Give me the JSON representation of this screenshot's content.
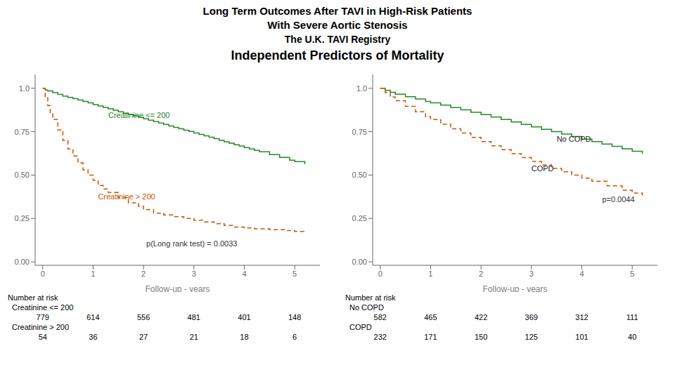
{
  "title": [
    "Long Term Outcomes After TAVI in High-Risk Patients",
    "With Severe Aortic Stenosis",
    "The U.K. TAVI Registry"
  ],
  "subtitle": "Independent Predictors of Mortality",
  "chart_data": [
    {
      "type": "step",
      "xlabel": "Follow-up - years",
      "xlim": [
        -0.15,
        5.5
      ],
      "xticks": [
        0,
        1,
        2,
        3,
        4,
        5
      ],
      "ylim": [
        -0.02,
        1.08
      ],
      "yticks": [
        {
          "value": 0,
          "label": "0.00"
        },
        0.25,
        {
          "value": 0.5,
          "label": "0.50"
        },
        0.75,
        {
          "value": 1.0,
          "label": "1.0"
        }
      ],
      "grid": false,
      "series": [
        {
          "color": "#228B22",
          "line_style": "solid",
          "x": [
            0,
            0.05,
            0.1,
            0.2,
            0.3,
            0.4,
            0.5,
            0.6,
            0.7,
            0.8,
            0.9,
            1.0,
            1.1,
            1.2,
            1.3,
            1.4,
            1.5,
            1.6,
            1.7,
            1.8,
            1.9,
            2.0,
            2.1,
            2.2,
            2.3,
            2.4,
            2.5,
            2.6,
            2.7,
            2.8,
            2.9,
            3.0,
            3.1,
            3.2,
            3.3,
            3.4,
            3.5,
            3.6,
            3.7,
            3.8,
            3.9,
            4.0,
            4.1,
            4.2,
            4.3,
            4.5,
            4.7,
            4.9,
            5.0,
            5.2
          ],
          "values": [
            1.0,
            0.99,
            0.985,
            0.975,
            0.965,
            0.955,
            0.948,
            0.94,
            0.932,
            0.924,
            0.916,
            0.906,
            0.898,
            0.89,
            0.882,
            0.874,
            0.865,
            0.857,
            0.849,
            0.841,
            0.833,
            0.824,
            0.816,
            0.808,
            0.8,
            0.792,
            0.783,
            0.775,
            0.767,
            0.759,
            0.751,
            0.742,
            0.734,
            0.726,
            0.718,
            0.71,
            0.7,
            0.692,
            0.684,
            0.675,
            0.667,
            0.658,
            0.65,
            0.642,
            0.634,
            0.618,
            0.602,
            0.586,
            0.578,
            0.562
          ]
        },
        {
          "color": "#CC5500",
          "line_style": "dashed",
          "x": [
            0,
            0.05,
            0.1,
            0.15,
            0.2,
            0.3,
            0.4,
            0.5,
            0.6,
            0.7,
            0.8,
            0.9,
            1.0,
            1.1,
            1.2,
            1.3,
            1.5,
            1.7,
            1.9,
            2.0,
            2.2,
            2.4,
            2.6,
            2.8,
            3.0,
            3.2,
            3.4,
            3.6,
            3.8,
            4.0,
            4.2,
            4.5,
            4.8,
            5.0,
            5.2
          ],
          "values": [
            1.0,
            0.95,
            0.9,
            0.86,
            0.82,
            0.76,
            0.7,
            0.65,
            0.61,
            0.57,
            0.53,
            0.5,
            0.47,
            0.44,
            0.42,
            0.4,
            0.37,
            0.34,
            0.32,
            0.3,
            0.28,
            0.27,
            0.26,
            0.25,
            0.24,
            0.23,
            0.22,
            0.21,
            0.2,
            0.195,
            0.19,
            0.185,
            0.18,
            0.175,
            0.17
          ]
        }
      ],
      "annotations": [
        {
          "text": "Creatinine <= 200",
          "x": 1.3,
          "y": 0.83,
          "color": "#228B22"
        },
        {
          "text": "Creatinine > 200",
          "x": 1.1,
          "y": 0.36,
          "color": "#CC5500"
        },
        {
          "text": "p(Long rank test) = 0.0033"
        }
      ],
      "risk_table": {
        "title": "Number at risk",
        "x": [
          0,
          1,
          2,
          3,
          4,
          5
        ],
        "rows": [
          {
            "name": "Creatinine <= 200",
            "values": [
              779,
              614,
              556,
              481,
              401,
              148
            ]
          },
          {
            "name": "Creatinine > 200",
            "values": [
              54,
              36,
              27,
              21,
              18,
              6
            ]
          }
        ]
      }
    },
    {
      "type": "step",
      "xlabel": "Follow-up - years",
      "xlim": [
        -0.15,
        5.5
      ],
      "xticks": [
        0,
        1,
        2,
        3,
        4,
        5
      ],
      "ylim": [
        -0.02,
        1.08
      ],
      "yticks": [
        {
          "value": 0,
          "label": "0.00"
        },
        0.25,
        {
          "value": 0.5,
          "label": "0.50"
        },
        0.75,
        {
          "value": 1.0,
          "label": "1.0"
        }
      ],
      "grid": false,
      "series": [
        {
          "color": "#228B22",
          "line_style": "solid",
          "x": [
            0,
            0.1,
            0.2,
            0.3,
            0.5,
            0.7,
            0.9,
            1.0,
            1.2,
            1.4,
            1.6,
            1.8,
            2.0,
            2.2,
            2.4,
            2.6,
            2.8,
            3.0,
            3.2,
            3.4,
            3.6,
            3.8,
            4.0,
            4.2,
            4.4,
            4.6,
            4.8,
            5.0,
            5.2
          ],
          "values": [
            1.0,
            0.988,
            0.977,
            0.966,
            0.952,
            0.938,
            0.924,
            0.916,
            0.903,
            0.889,
            0.876,
            0.862,
            0.848,
            0.834,
            0.82,
            0.806,
            0.792,
            0.778,
            0.764,
            0.75,
            0.736,
            0.722,
            0.707,
            0.693,
            0.679,
            0.665,
            0.651,
            0.637,
            0.623
          ]
        },
        {
          "color": "#CC5500",
          "line_style": "dashed",
          "x": [
            0,
            0.1,
            0.2,
            0.3,
            0.5,
            0.7,
            0.9,
            1.0,
            1.2,
            1.4,
            1.6,
            1.8,
            2.0,
            2.2,
            2.4,
            2.6,
            2.8,
            3.0,
            3.2,
            3.4,
            3.6,
            3.8,
            4.0,
            4.2,
            4.5,
            4.8,
            5.0,
            5.2
          ],
          "values": [
            1.0,
            0.975,
            0.95,
            0.928,
            0.896,
            0.865,
            0.836,
            0.82,
            0.793,
            0.767,
            0.742,
            0.717,
            0.693,
            0.669,
            0.646,
            0.623,
            0.601,
            0.579,
            0.558,
            0.538,
            0.519,
            0.5,
            0.482,
            0.464,
            0.438,
            0.413,
            0.397,
            0.382
          ]
        }
      ],
      "annotations": [
        {
          "text": "No COPD",
          "x": 3.5,
          "y": 0.69
        },
        {
          "text": "COPD",
          "x": 3.0,
          "y": 0.52
        },
        {
          "text": "p=0.0044"
        }
      ],
      "risk_table": {
        "title": "Number at risk",
        "x": [
          0,
          1,
          2,
          3,
          4,
          5
        ],
        "rows": [
          {
            "name": "No COPD",
            "values": [
              582,
              465,
              422,
              369,
              312,
              111
            ]
          },
          {
            "name": "COPD",
            "values": [
              232,
              171,
              150,
              125,
              101,
              40
            ]
          }
        ]
      }
    }
  ]
}
